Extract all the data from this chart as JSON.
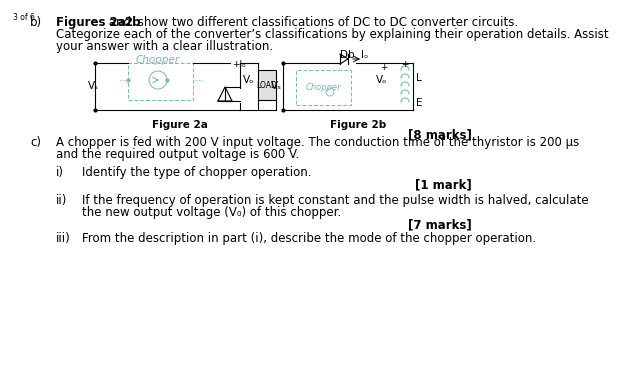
{
  "page_label": "3 of 6",
  "bg": "#ffffff",
  "tc": "#000000",
  "cc": "#7ab8b8",
  "line1_bold1": "Figures 2a",
  "line1_mid": " and ",
  "line1_bold2": "2b",
  "line1_rest": " show two different classifications of DC to DC converter circuits.",
  "line2": "Categorize each of the converter’s classifications by explaining their operation details. Assist",
  "line3": "your answer with a clear illustration.",
  "fig2a_label": "Figure 2a",
  "fig2b_label": "Figure 2b",
  "marks_b": "[8 marks]",
  "c_text1": "A chopper is fed with 200 V input voltage. The conduction time of the thyristor is 200 μs",
  "c_text2": "and the required output voltage is 600 V.",
  "i_text": "Identify the type of chopper operation.",
  "marks_i": "[1 mark]",
  "ii_text1": "If the frequency of operation is kept constant and the pulse width is halved, calculate",
  "ii_text2": "the new output voltage (V₀) of this chopper.",
  "marks_ii": "[7 marks]",
  "iii_text": "From the description in part (i), describe the mode of the chopper operation.",
  "fs": 8.5,
  "fs_small": 7.5
}
